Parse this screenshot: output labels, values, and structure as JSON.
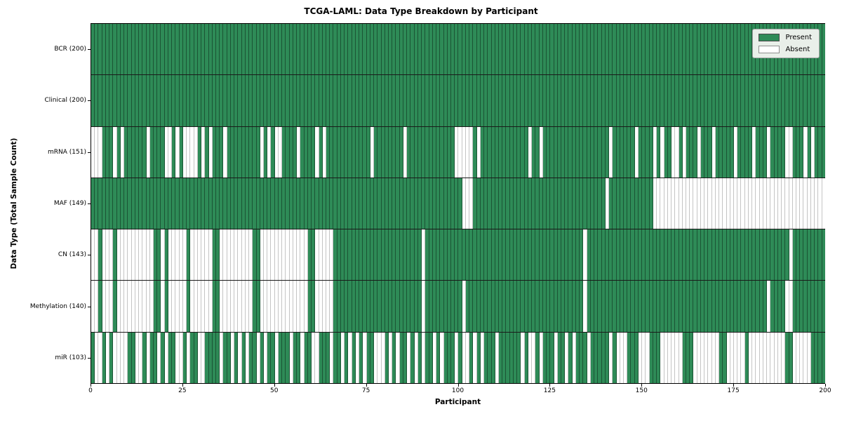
{
  "title": "TCGA-LAML: Data Type Breakdown by Participant",
  "xlabel": "Participant",
  "ylabel": "Data Type (Total Sample Count)",
  "n_participants": 200,
  "x_ticks": [
    0,
    25,
    50,
    75,
    100,
    125,
    150,
    175,
    200
  ],
  "legend": {
    "present_label": "Present",
    "absent_label": "Absent"
  },
  "colors": {
    "present": "#2e8b57",
    "absent": "#ffffff",
    "present_edge": "#1b5434",
    "absent_edge": "#c4c4c4",
    "row_separator": "#1a1a1a",
    "axis": "#000000",
    "legend_bg": "#e9efe9"
  },
  "chart_data": {
    "type": "heatmap",
    "x_range": [
      0,
      200
    ],
    "grid": false,
    "legend_position": "upper right",
    "value_states": [
      "Present",
      "Absent"
    ],
    "rows": [
      {
        "label": "BCR (200)",
        "name": "BCR",
        "present_count": 200,
        "absent_cols": []
      },
      {
        "label": "Clinical (200)",
        "name": "Clinical",
        "present_count": 200,
        "absent_cols": []
      },
      {
        "label": "mRNA (151)",
        "name": "mRNA",
        "present_count": 151,
        "absent_cols": [
          0,
          1,
          2,
          6,
          8,
          15,
          20,
          21,
          23,
          25,
          26,
          27,
          28,
          30,
          32,
          36,
          46,
          48,
          50,
          51,
          56,
          61,
          63,
          76,
          85,
          99,
          100,
          101,
          102,
          103,
          105,
          119,
          122,
          141,
          148,
          153,
          155,
          158,
          159,
          161,
          165,
          169,
          175,
          180,
          184,
          189,
          190,
          194,
          196
        ]
      },
      {
        "label": "MAF (149)",
        "name": "MAF",
        "present_count": 149,
        "absent_cols": [
          101,
          102,
          103,
          140,
          153,
          154,
          155,
          156,
          157,
          158,
          159,
          160,
          161,
          162,
          163,
          164,
          165,
          166,
          167,
          168,
          169,
          170,
          171,
          172,
          173,
          174,
          175,
          176,
          177,
          178,
          179,
          180,
          181,
          182,
          183,
          184,
          185,
          186,
          187,
          188,
          189,
          190,
          191,
          192,
          193,
          194,
          195,
          196,
          197,
          198,
          199
        ]
      },
      {
        "label": "CN (143)",
        "name": "CN",
        "present_count": 143,
        "absent_cols": [
          0,
          1,
          3,
          4,
          5,
          7,
          8,
          9,
          10,
          11,
          12,
          13,
          14,
          15,
          16,
          19,
          21,
          22,
          23,
          24,
          25,
          27,
          28,
          29,
          30,
          31,
          32,
          35,
          36,
          37,
          38,
          39,
          40,
          41,
          42,
          43,
          46,
          47,
          48,
          49,
          50,
          51,
          52,
          53,
          54,
          55,
          56,
          57,
          58,
          61,
          62,
          63,
          64,
          65,
          90,
          134,
          190
        ]
      },
      {
        "label": "Methylation (140)",
        "name": "Methylation",
        "present_count": 140,
        "absent_cols": [
          0,
          1,
          3,
          4,
          5,
          7,
          8,
          9,
          10,
          11,
          12,
          13,
          14,
          15,
          16,
          19,
          21,
          22,
          23,
          24,
          25,
          27,
          28,
          29,
          30,
          31,
          32,
          35,
          36,
          37,
          38,
          39,
          40,
          41,
          42,
          43,
          46,
          47,
          48,
          49,
          50,
          51,
          52,
          53,
          54,
          55,
          56,
          57,
          58,
          61,
          62,
          63,
          64,
          65,
          90,
          101,
          134,
          184,
          189,
          190
        ]
      },
      {
        "label": "miR (103)",
        "name": "miR",
        "present_count": 103,
        "absent_cols": [
          1,
          2,
          4,
          6,
          7,
          8,
          9,
          12,
          13,
          15,
          18,
          20,
          23,
          24,
          26,
          29,
          30,
          35,
          38,
          40,
          42,
          45,
          47,
          50,
          54,
          57,
          60,
          61,
          65,
          68,
          70,
          72,
          74,
          77,
          78,
          79,
          81,
          83,
          86,
          88,
          90,
          93,
          95,
          99,
          101,
          102,
          104,
          106,
          110,
          117,
          119,
          120,
          122,
          126,
          129,
          131,
          135,
          141,
          143,
          144,
          145,
          149,
          150,
          151,
          155,
          156,
          157,
          158,
          159,
          160,
          164,
          165,
          166,
          167,
          168,
          169,
          170,
          173,
          174,
          175,
          176,
          177,
          179,
          180,
          181,
          182,
          183,
          184,
          185,
          186,
          187,
          188,
          191,
          192,
          193,
          194,
          195
        ]
      }
    ]
  }
}
